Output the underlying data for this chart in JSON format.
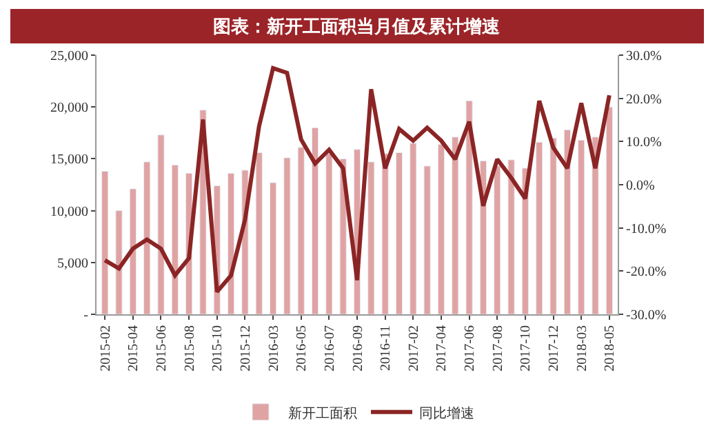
{
  "chart_data": {
    "type": "bar",
    "title": "图表：新开工面积当月值及累计增速",
    "categories": [
      "2015-02",
      null,
      "2015-04",
      null,
      "2015-06",
      null,
      "2015-08",
      null,
      "2015-10",
      null,
      "2015-12",
      null,
      "2016-03",
      null,
      "2016-05",
      null,
      "2016-07",
      null,
      "2016-09",
      null,
      "2016-11",
      null,
      "2017-02",
      null,
      "2017-04",
      null,
      "2017-06",
      null,
      "2017-08",
      null,
      "2017-10",
      null,
      "2017-12",
      null,
      "2018-03",
      null,
      "2018-05"
    ],
    "series": [
      {
        "name": "新开工面积",
        "color": "#e0a3a3",
        "values": [
          13800,
          10000,
          12100,
          14700,
          17300,
          14400,
          13600,
          19700,
          12400,
          13600,
          13900,
          15600,
          12700,
          15100,
          16100,
          18000,
          15500,
          15000,
          15900,
          14700,
          15500,
          15600,
          16500,
          14300,
          16400,
          17100,
          20600,
          14800,
          14300,
          14900,
          14100,
          16600,
          17000,
          17800,
          16800,
          17100,
          20000
        ]
      },
      {
        "name": "同比增速",
        "type": "line",
        "axis": "y2",
        "color": "#8b2525",
        "values": [
          -17.5,
          -19.4,
          -14.8,
          -12.7,
          -14.8,
          -21.0,
          -17.0,
          15.1,
          -24.8,
          -21.0,
          -8.1,
          13.5,
          27.0,
          25.9,
          10.5,
          4.9,
          8.1,
          3.8,
          -22.1,
          22.1,
          3.8,
          12.9,
          10.2,
          13.2,
          10.2,
          5.9,
          14.6,
          -4.9,
          5.9,
          1.6,
          -3.2,
          19.4,
          8.6,
          3.8,
          18.9,
          3.8,
          20.7
        ]
      }
    ],
    "ylim": [
      0,
      25000
    ],
    "yticks": [
      {
        "value": 0,
        "label": "-"
      },
      {
        "value": 5000,
        "label": "5,000"
      },
      {
        "value": 10000,
        "label": "10,000"
      },
      {
        "value": 15000,
        "label": "15,000"
      },
      {
        "value": 20000,
        "label": "20,000"
      },
      {
        "value": 25000,
        "label": "25,000"
      }
    ],
    "y2lim": [
      -30,
      30
    ],
    "y2ticks": [
      {
        "value": -30,
        "label": "-30.0%"
      },
      {
        "value": -20,
        "label": "-20.0%"
      },
      {
        "value": -10,
        "label": "-10.0%"
      },
      {
        "value": 0,
        "label": "0.0%"
      },
      {
        "value": 10,
        "label": "10.0%"
      },
      {
        "value": 20,
        "label": "20.0%"
      },
      {
        "value": 30,
        "label": "30.0%"
      }
    ],
    "legend": "bottom",
    "marker": "none",
    "line_style": "solid"
  }
}
